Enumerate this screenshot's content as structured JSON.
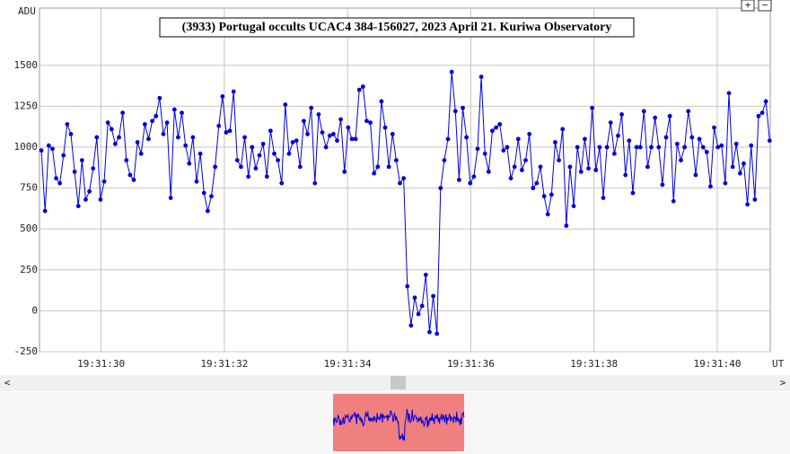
{
  "chart_data": {
    "type": "line",
    "title": "(3933) Portugal occults UCAC4 384-156027, 2023 April 21. Kuriwa Observatory",
    "y_label": "ADU",
    "x_label": "UT",
    "color": "#0000dd",
    "grid": true,
    "markers": true,
    "ylim": [
      -250,
      1850
    ],
    "yticks": [
      -250,
      0,
      250,
      500,
      750,
      1000,
      1250,
      1500
    ],
    "xlim": [
      29.0,
      40.86
    ],
    "xticks": [
      {
        "value": 30,
        "label": "19:31:30"
      },
      {
        "value": 32,
        "label": "19:31:32"
      },
      {
        "value": 34,
        "label": "19:31:34"
      },
      {
        "value": 36,
        "label": "19:31:36"
      },
      {
        "value": 38,
        "label": "19:31:38"
      },
      {
        "value": 40,
        "label": "19:31:40"
      }
    ],
    "x": [
      29.03,
      29.09,
      29.15,
      29.21,
      29.27,
      29.33,
      29.39,
      29.45,
      29.51,
      29.57,
      29.63,
      29.69,
      29.75,
      29.81,
      29.87,
      29.93,
      29.99,
      30.05,
      30.11,
      30.17,
      30.23,
      30.29,
      30.35,
      30.41,
      30.47,
      30.53,
      30.59,
      30.65,
      30.71,
      30.77,
      30.83,
      30.89,
      30.95,
      31.01,
      31.07,
      31.13,
      31.19,
      31.25,
      31.31,
      31.37,
      31.43,
      31.49,
      31.55,
      31.61,
      31.67,
      31.73,
      31.79,
      31.85,
      31.91,
      31.97,
      32.03,
      32.09,
      32.15,
      32.21,
      32.27,
      32.33,
      32.39,
      32.45,
      32.51,
      32.57,
      32.63,
      32.69,
      32.75,
      32.81,
      32.87,
      32.93,
      32.99,
      33.05,
      33.11,
      33.17,
      33.23,
      33.29,
      33.35,
      33.41,
      33.47,
      33.53,
      33.59,
      33.65,
      33.71,
      33.77,
      33.83,
      33.89,
      33.95,
      34.01,
      34.07,
      34.13,
      34.19,
      34.25,
      34.31,
      34.37,
      34.43,
      34.49,
      34.55,
      34.61,
      34.67,
      34.73,
      34.79,
      34.85,
      34.91,
      34.97,
      35.03,
      35.09,
      35.15,
      35.21,
      35.27,
      35.33,
      35.39,
      35.45,
      35.51,
      35.57,
      35.63,
      35.69,
      35.75,
      35.81,
      35.87,
      35.93,
      35.99,
      36.05,
      36.11,
      36.17,
      36.23,
      36.29,
      36.35,
      36.41,
      36.47,
      36.53,
      36.59,
      36.65,
      36.71,
      36.77,
      36.83,
      36.89,
      36.95,
      37.01,
      37.07,
      37.13,
      37.19,
      37.25,
      37.31,
      37.37,
      37.43,
      37.49,
      37.55,
      37.61,
      37.67,
      37.73,
      37.79,
      37.85,
      37.91,
      37.97,
      38.03,
      38.09,
      38.15,
      38.21,
      38.27,
      38.33,
      38.39,
      38.45,
      38.51,
      38.57,
      38.63,
      38.69,
      38.75,
      38.81,
      38.87,
      38.93,
      38.99,
      39.05,
      39.11,
      39.17,
      39.23,
      39.29,
      39.35,
      39.41,
      39.47,
      39.53,
      39.59,
      39.65,
      39.71,
      39.77,
      39.83,
      39.89,
      39.95,
      40.01,
      40.07,
      40.13,
      40.19,
      40.25,
      40.31,
      40.37,
      40.43,
      40.49,
      40.55,
      40.61,
      40.67,
      40.73,
      40.79,
      40.85
    ],
    "values": [
      980,
      610,
      1010,
      990,
      810,
      780,
      950,
      1140,
      1080,
      850,
      640,
      920,
      680,
      730,
      870,
      1060,
      680,
      790,
      1150,
      1110,
      1020,
      1060,
      1210,
      920,
      830,
      800,
      1030,
      960,
      1140,
      1050,
      1160,
      1190,
      1300,
      1080,
      1150,
      690,
      1230,
      1060,
      1210,
      1010,
      900,
      1060,
      790,
      960,
      720,
      610,
      700,
      880,
      1130,
      1310,
      1090,
      1100,
      1340,
      920,
      880,
      1060,
      820,
      1000,
      870,
      950,
      1020,
      820,
      1100,
      960,
      920,
      780,
      1260,
      960,
      1030,
      1040,
      880,
      1160,
      1080,
      1240,
      780,
      1200,
      1090,
      1000,
      1070,
      1080,
      1040,
      1170,
      850,
      1120,
      1050,
      1050,
      1350,
      1370,
      1160,
      1150,
      840,
      880,
      1280,
      1120,
      880,
      1080,
      920,
      780,
      810,
      150,
      -90,
      80,
      -20,
      30,
      220,
      -130,
      90,
      -140,
      750,
      920,
      1050,
      1460,
      1220,
      800,
      1240,
      1060,
      780,
      820,
      990,
      1430,
      960,
      850,
      1100,
      1120,
      1140,
      980,
      1000,
      810,
      880,
      1050,
      860,
      920,
      1080,
      750,
      780,
      880,
      700,
      590,
      710,
      1030,
      920,
      1110,
      520,
      880,
      640,
      1000,
      850,
      1050,
      870,
      1240,
      860,
      1000,
      690,
      1000,
      1150,
      960,
      1070,
      1200,
      830,
      1040,
      720,
      1000,
      1000,
      1220,
      880,
      1000,
      1180,
      1000,
      770,
      1060,
      1190,
      670,
      1020,
      920,
      1000,
      1220,
      1060,
      830,
      1050,
      1000,
      970,
      760,
      1120,
      1000,
      1010,
      780,
      1330,
      880,
      1020,
      840,
      900,
      650,
      1010,
      680,
      1190,
      1210,
      1280,
      1040
    ]
  },
  "ui": {
    "zoom_in": "+",
    "zoom_out": "−",
    "scroll_left": "<",
    "scroll_right": ">"
  }
}
